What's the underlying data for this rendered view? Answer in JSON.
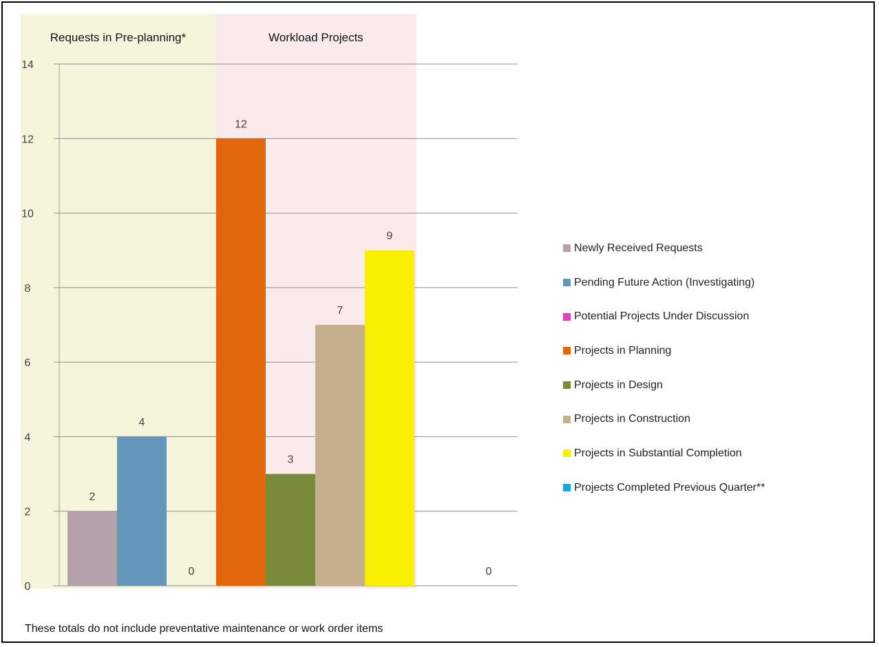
{
  "chart_data": {
    "type": "bar",
    "title": "",
    "xlabel": "",
    "ylabel": "",
    "ylim": [
      0,
      14
    ],
    "y_ticks": [
      "0",
      "2",
      "4",
      "6",
      "8",
      "10",
      "12",
      "14"
    ],
    "grid": true,
    "legend_position": "right",
    "regions": [
      {
        "label": "Requests in Pre-planning*",
        "color": "#f5f5dc"
      },
      {
        "label": "Workload Projects",
        "color": "#fbeaea"
      }
    ],
    "series": [
      {
        "name": "Newly Received Requests",
        "value": 2,
        "color": "#b3a2ab"
      },
      {
        "name": "Pending Future Action (Investigating)",
        "value": 4,
        "color": "#6496bc"
      },
      {
        "name": "Potential Projects Under Discussion",
        "value": 0,
        "color": "#e03fbd"
      },
      {
        "name": "Projects in Planning",
        "value": 12,
        "color": "#e2660c"
      },
      {
        "name": "Projects in Design",
        "value": 3,
        "color": "#7a8a3b"
      },
      {
        "name": "Projects in Construction",
        "value": 7,
        "color": "#c4b08c"
      },
      {
        "name": "Projects in Substantial Completion",
        "value": 9,
        "color": "#f8f000"
      },
      {
        "name": "Projects Completed Previous Quarter**",
        "value": 0,
        "color": "#10a9e0"
      }
    ],
    "footnote": "These totals do not include preventative maintenance or work order items"
  }
}
